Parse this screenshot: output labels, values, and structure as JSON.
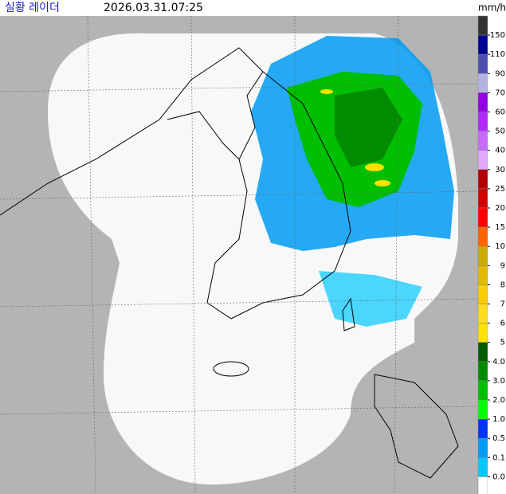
{
  "header": {
    "title": "실황 레이더",
    "time": "2026.03.31.07:25"
  },
  "legend": {
    "unit": "mm/h",
    "labels": [
      "150",
      "110",
      "90",
      "70",
      "60",
      "50",
      "40",
      "30",
      "25",
      "20",
      "15",
      "10",
      "9",
      "8",
      "7",
      "6",
      "5",
      "4.0",
      "3.0",
      "2.0",
      "1.0",
      "0.5",
      "0.1",
      "0.0"
    ],
    "colors": [
      "#333333",
      "#000390",
      "#4c4eb1",
      "#b3b4de",
      "#9300e4",
      "#b329ff",
      "#c969ff",
      "#e0a9ff",
      "#b40000",
      "#d20000",
      "#ff0000",
      "#ff6300",
      "#ccaa00",
      "#e0b900",
      "#f9cd00",
      "#ffdc1f",
      "#ffe100",
      "#005a00",
      "#008c00",
      "#00be00",
      "#00ff00",
      "#0033f5",
      "#009bf5",
      "#00c8ff",
      "#ffffff"
    ]
  }
}
